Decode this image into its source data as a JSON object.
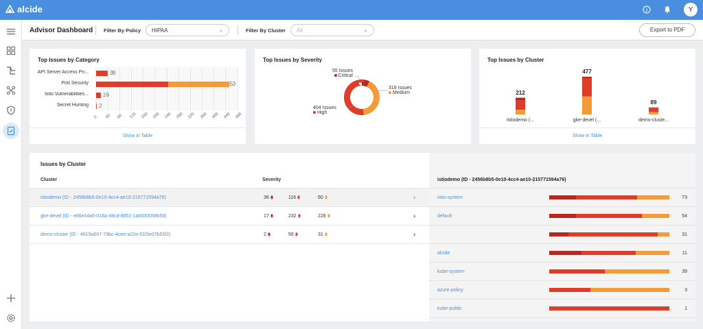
{
  "app": {
    "logo": "alcide"
  },
  "colors": {
    "critical": "#b5281f",
    "high": "#e03c2a",
    "medium": "#f29b38",
    "link": "#4a8fdf",
    "header": "#4a8fdf"
  },
  "topbar": {
    "avatar_initial": "Y"
  },
  "header": {
    "title": "Advisor Dashboard",
    "policy_label": "Filter By Policy",
    "policy_value": "HIPAA",
    "cluster_label": "Filter By Cluster",
    "cluster_placeholder": "All",
    "export_label": "Export to PDF"
  },
  "category_card": {
    "title": "Top Issues by Category",
    "show_table": "Show in Table"
  },
  "severity_card": {
    "title": "Top Issues by Severity"
  },
  "cluster_card": {
    "title": "Top Issues by Cluster",
    "show_table": "Show in Table"
  },
  "chart_data": [
    {
      "type": "bar",
      "orientation": "horizontal",
      "title": "Top Issues by Category",
      "categories": [
        "API Server Access Pri...",
        "Pod Security",
        "Istio Vulnerabilities...",
        "Secret Hunting"
      ],
      "series": [
        {
          "name": "Critical",
          "values": [
            0,
            3,
            0,
            0
          ]
        },
        {
          "name": "High",
          "values": [
            39,
            242,
            16,
            2
          ]
        },
        {
          "name": "Medium",
          "values": [
            0,
            208,
            0,
            0
          ]
        }
      ],
      "totals": [
        39,
        453,
        16,
        2
      ],
      "xticks": [
        "0",
        "40",
        "80",
        "120",
        "160",
        "200",
        "240",
        "280",
        "320",
        "360",
        "400",
        "440",
        "480"
      ],
      "xlim": [
        0,
        480
      ],
      "grid": true
    },
    {
      "type": "pie",
      "title": "Top Issues by Severity",
      "labels": [
        "Critical",
        "Medium",
        "High"
      ],
      "values": [
        55,
        319,
        404
      ],
      "value_labels": [
        "55 Issues",
        "319 Issues",
        "404 Issues"
      ]
    },
    {
      "type": "bar",
      "title": "Top Issues by Cluster",
      "categories": [
        "istiodemo (...",
        "gke-devel (...",
        "demo-cluste..."
      ],
      "series": [
        {
          "name": "Critical",
          "values": [
            36,
            17,
            2
          ]
        },
        {
          "name": "High",
          "values": [
            116,
            232,
            56
          ]
        },
        {
          "name": "Medium",
          "values": [
            60,
            228,
            31
          ]
        }
      ],
      "totals": [
        212,
        477,
        89
      ]
    }
  ],
  "issues_table": {
    "title": "Issues by Cluster",
    "col_cluster": "Cluster",
    "col_severity": "Severity",
    "rows": [
      {
        "name": "istiodemo (ID - 2456b8b5-0e10-4cc4-ae10-215771594a76)",
        "critical": "36",
        "high": "116",
        "medium": "60"
      },
      {
        "name": "gke-devel (ID - e86e44a6-018a-48cd-8852-1a5030058b58)",
        "critical": "17",
        "high": "232",
        "medium": "228"
      },
      {
        "name": "demo-cluster (ID - 4619a607-79bc-4cee-a22e-01f2e07b55f2)",
        "critical": "2",
        "high": "56",
        "medium": "31"
      }
    ],
    "arrow": "›"
  },
  "detail": {
    "title": "istiodemo (ID - 2456b8b5-0e10-4cc4-ae10-215771594a76)",
    "rows": [
      {
        "name": "istio-system",
        "count": "73",
        "critical": 0.22,
        "high": 0.51,
        "medium": 0.27
      },
      {
        "name": "default",
        "count": "54",
        "critical": 0.22,
        "high": 0.55,
        "medium": 0.23
      },
      {
        "name": "",
        "count": "31",
        "critical": 0.16,
        "high": 0.74,
        "medium": 0.1
      },
      {
        "name": "alcide",
        "count": "11",
        "critical": 0.27,
        "high": 0.45,
        "medium": 0.28
      },
      {
        "name": "kube-system",
        "count": "39",
        "critical": 0.0,
        "high": 0.46,
        "medium": 0.54
      },
      {
        "name": "azure-policy",
        "count": "3",
        "critical": 0.0,
        "high": 0.34,
        "medium": 0.66
      },
      {
        "name": "kube-public",
        "count": "1",
        "critical": 0.0,
        "high": 1.0,
        "medium": 0.0
      }
    ]
  }
}
